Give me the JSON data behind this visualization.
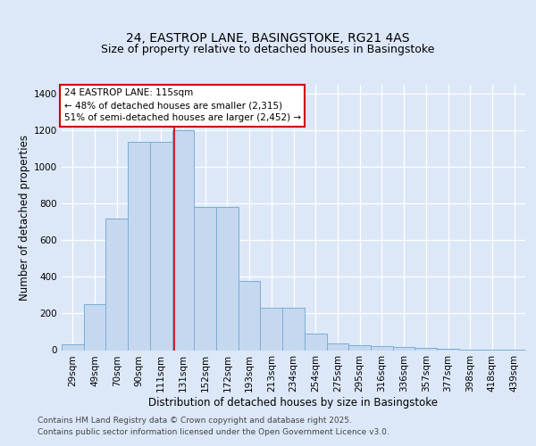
{
  "title_line1": "24, EASTROP LANE, BASINGSTOKE, RG21 4AS",
  "title_line2": "Size of property relative to detached houses in Basingstoke",
  "xlabel": "Distribution of detached houses by size in Basingstoke",
  "ylabel": "Number of detached properties",
  "categories": [
    "29sqm",
    "49sqm",
    "70sqm",
    "90sqm",
    "111sqm",
    "131sqm",
    "152sqm",
    "172sqm",
    "193sqm",
    "213sqm",
    "234sqm",
    "254sqm",
    "275sqm",
    "295sqm",
    "316sqm",
    "336sqm",
    "357sqm",
    "377sqm",
    "398sqm",
    "418sqm",
    "439sqm"
  ],
  "values": [
    30,
    250,
    720,
    1140,
    1140,
    1200,
    780,
    780,
    380,
    230,
    230,
    90,
    35,
    25,
    20,
    15,
    10,
    5,
    3,
    2,
    1
  ],
  "bar_color": "#c5d8f0",
  "bar_edge_color": "#7aadd4",
  "background_color": "#dce8f8",
  "fig_background_color": "#dce8f8",
  "grid_color": "#ffffff",
  "vline_x": 4.6,
  "vline_color": "#cc0000",
  "annotation_text": "24 EASTROP LANE: 115sqm\n← 48% of detached houses are smaller (2,315)\n51% of semi-detached houses are larger (2,452) →",
  "annotation_box_color": "#ffffff",
  "annotation_box_edge": "#cc0000",
  "ylim": [
    0,
    1450
  ],
  "yticks": [
    0,
    200,
    400,
    600,
    800,
    1000,
    1200,
    1400
  ],
  "footer_line1": "Contains HM Land Registry data © Crown copyright and database right 2025.",
  "footer_line2": "Contains public sector information licensed under the Open Government Licence v3.0.",
  "title_fontsize": 10,
  "subtitle_fontsize": 9,
  "axis_label_fontsize": 8.5,
  "tick_fontsize": 7.5,
  "annotation_fontsize": 7.5,
  "footer_fontsize": 6.5
}
